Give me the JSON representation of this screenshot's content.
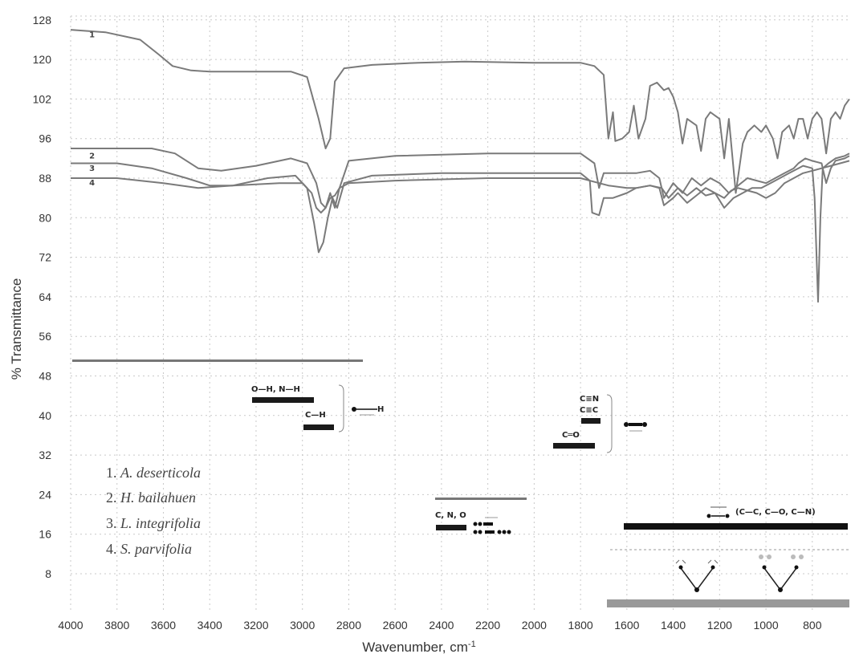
{
  "chart_data": {
    "type": "line",
    "title": "",
    "xlabel": "Wavenumber, cm",
    "xlabel_sup": "-1",
    "ylabel": "% Transmittance",
    "xlim": [
      4000,
      640
    ],
    "ylim": [
      0,
      128
    ],
    "x_reversed": true,
    "grid": true,
    "x_ticks": [
      4000,
      3800,
      3600,
      3400,
      3200,
      3000,
      2800,
      2600,
      2400,
      2200,
      2000,
      1800,
      1600,
      1400,
      1200,
      1000,
      800
    ],
    "y_ticks": [
      8,
      16,
      24,
      32,
      40,
      48,
      56,
      64,
      72,
      80,
      88,
      96,
      102,
      120,
      128
    ],
    "legend": {
      "placement": "bottom-left",
      "entries": [
        {
          "num": "1. ",
          "name": "A. deserticola"
        },
        {
          "num": "2. ",
          "name": "H. bailahuen"
        },
        {
          "num": "3. ",
          "name": "L. integrifolia"
        },
        {
          "num": "4. ",
          "name": "S. parvifolia"
        }
      ]
    },
    "series": [
      {
        "label": "1",
        "label_at": [
          3920,
          124.5
        ],
        "points": [
          [
            4000,
            126
          ],
          [
            3850,
            125.5
          ],
          [
            3700,
            124
          ],
          [
            3620,
            121
          ],
          [
            3560,
            117
          ],
          [
            3480,
            115
          ],
          [
            3400,
            114.5
          ],
          [
            3200,
            114.5
          ],
          [
            3050,
            114.5
          ],
          [
            2980,
            112
          ],
          [
            2930,
            99
          ],
          [
            2900,
            94
          ],
          [
            2880,
            96
          ],
          [
            2860,
            110
          ],
          [
            2820,
            116
          ],
          [
            2700,
            117.5
          ],
          [
            2500,
            118.5
          ],
          [
            2300,
            119
          ],
          [
            2000,
            118.5
          ],
          [
            1800,
            118.5
          ],
          [
            1740,
            117
          ],
          [
            1700,
            113
          ],
          [
            1680,
            96
          ],
          [
            1660,
            100
          ],
          [
            1650,
            95.5
          ],
          [
            1620,
            96
          ],
          [
            1590,
            97
          ],
          [
            1570,
            101
          ],
          [
            1550,
            96
          ],
          [
            1520,
            99
          ],
          [
            1500,
            108
          ],
          [
            1470,
            109.5
          ],
          [
            1440,
            106
          ],
          [
            1420,
            107
          ],
          [
            1400,
            103
          ],
          [
            1380,
            100
          ],
          [
            1360,
            95
          ],
          [
            1340,
            99
          ],
          [
            1300,
            98
          ],
          [
            1280,
            93.5
          ],
          [
            1260,
            99
          ],
          [
            1240,
            100
          ],
          [
            1200,
            99
          ],
          [
            1180,
            92
          ],
          [
            1160,
            99
          ],
          [
            1130,
            85
          ],
          [
            1100,
            95
          ],
          [
            1080,
            97
          ],
          [
            1050,
            98
          ],
          [
            1020,
            97
          ],
          [
            1000,
            98
          ],
          [
            970,
            96
          ],
          [
            950,
            92
          ],
          [
            930,
            97
          ],
          [
            900,
            98
          ],
          [
            880,
            96
          ],
          [
            860,
            99
          ],
          [
            840,
            99
          ],
          [
            820,
            96
          ],
          [
            800,
            99
          ],
          [
            780,
            100
          ],
          [
            760,
            99
          ],
          [
            740,
            93
          ],
          [
            720,
            99
          ],
          [
            700,
            100
          ],
          [
            680,
            99
          ],
          [
            660,
            101
          ],
          [
            640,
            102
          ]
        ]
      },
      {
        "label": "2",
        "label_at": [
          3920,
          92
        ],
        "points": [
          [
            4000,
            94
          ],
          [
            3800,
            94
          ],
          [
            3650,
            94
          ],
          [
            3550,
            93
          ],
          [
            3450,
            90
          ],
          [
            3350,
            89.5
          ],
          [
            3200,
            90.5
          ],
          [
            3050,
            92
          ],
          [
            2980,
            91
          ],
          [
            2940,
            87
          ],
          [
            2920,
            83
          ],
          [
            2900,
            82
          ],
          [
            2880,
            85
          ],
          [
            2860,
            82
          ],
          [
            2840,
            86
          ],
          [
            2800,
            91.5
          ],
          [
            2600,
            92.5
          ],
          [
            2200,
            93
          ],
          [
            1800,
            93
          ],
          [
            1740,
            91
          ],
          [
            1720,
            86
          ],
          [
            1700,
            89
          ],
          [
            1660,
            89
          ],
          [
            1600,
            89
          ],
          [
            1560,
            89
          ],
          [
            1500,
            89.5
          ],
          [
            1460,
            88
          ],
          [
            1440,
            84
          ],
          [
            1400,
            87
          ],
          [
            1360,
            85
          ],
          [
            1320,
            88
          ],
          [
            1280,
            86.5
          ],
          [
            1240,
            88
          ],
          [
            1200,
            87
          ],
          [
            1160,
            85
          ],
          [
            1120,
            86.5
          ],
          [
            1080,
            88
          ],
          [
            1040,
            87.5
          ],
          [
            1000,
            87
          ],
          [
            960,
            88
          ],
          [
            920,
            89
          ],
          [
            880,
            90
          ],
          [
            860,
            91
          ],
          [
            830,
            92
          ],
          [
            800,
            91.5
          ],
          [
            760,
            91
          ],
          [
            740,
            87
          ],
          [
            720,
            90
          ],
          [
            700,
            91.5
          ],
          [
            660,
            92
          ],
          [
            640,
            92.5
          ]
        ]
      },
      {
        "label": "3",
        "label_at": [
          3920,
          89.5
        ],
        "points": [
          [
            4000,
            91
          ],
          [
            3800,
            91
          ],
          [
            3650,
            90
          ],
          [
            3500,
            88
          ],
          [
            3400,
            86.5
          ],
          [
            3300,
            86.5
          ],
          [
            3150,
            88
          ],
          [
            3030,
            88.5
          ],
          [
            2980,
            86
          ],
          [
            2950,
            79
          ],
          [
            2930,
            73
          ],
          [
            2910,
            75
          ],
          [
            2890,
            80
          ],
          [
            2870,
            84
          ],
          [
            2850,
            82
          ],
          [
            2820,
            87
          ],
          [
            2700,
            88.5
          ],
          [
            2400,
            89
          ],
          [
            2000,
            89
          ],
          [
            1800,
            89
          ],
          [
            1760,
            87.5
          ],
          [
            1750,
            81
          ],
          [
            1720,
            80.5
          ],
          [
            1700,
            84
          ],
          [
            1660,
            84
          ],
          [
            1600,
            85
          ],
          [
            1560,
            86
          ],
          [
            1500,
            86.5
          ],
          [
            1460,
            86
          ],
          [
            1440,
            82.5
          ],
          [
            1400,
            84
          ],
          [
            1380,
            85
          ],
          [
            1340,
            83
          ],
          [
            1300,
            84.5
          ],
          [
            1260,
            86
          ],
          [
            1220,
            85
          ],
          [
            1180,
            82
          ],
          [
            1140,
            84
          ],
          [
            1100,
            85
          ],
          [
            1060,
            86
          ],
          [
            1020,
            86
          ],
          [
            980,
            87
          ],
          [
            940,
            88
          ],
          [
            900,
            89
          ],
          [
            860,
            90
          ],
          [
            840,
            90.5
          ],
          [
            800,
            90
          ],
          [
            790,
            84
          ],
          [
            775,
            63
          ],
          [
            765,
            80
          ],
          [
            755,
            90
          ],
          [
            730,
            91
          ],
          [
            700,
            92
          ],
          [
            660,
            92.5
          ],
          [
            640,
            93
          ]
        ]
      },
      {
        "label": "4",
        "label_at": [
          3920,
          86.5
        ],
        "points": [
          [
            4000,
            88
          ],
          [
            3800,
            88
          ],
          [
            3600,
            87
          ],
          [
            3450,
            86
          ],
          [
            3300,
            86.5
          ],
          [
            3100,
            87
          ],
          [
            3000,
            87
          ],
          [
            2960,
            85
          ],
          [
            2940,
            82
          ],
          [
            2920,
            81
          ],
          [
            2900,
            82
          ],
          [
            2880,
            84
          ],
          [
            2860,
            84.5
          ],
          [
            2840,
            86
          ],
          [
            2800,
            87
          ],
          [
            2600,
            87.5
          ],
          [
            2200,
            88
          ],
          [
            1800,
            88
          ],
          [
            1720,
            87
          ],
          [
            1680,
            86.5
          ],
          [
            1600,
            86
          ],
          [
            1560,
            86
          ],
          [
            1500,
            86.5
          ],
          [
            1450,
            86
          ],
          [
            1420,
            84
          ],
          [
            1380,
            86
          ],
          [
            1340,
            84.5
          ],
          [
            1300,
            86
          ],
          [
            1260,
            84.5
          ],
          [
            1220,
            85
          ],
          [
            1180,
            84
          ],
          [
            1150,
            85.5
          ],
          [
            1120,
            86
          ],
          [
            1080,
            85.5
          ],
          [
            1040,
            85
          ],
          [
            1000,
            84
          ],
          [
            960,
            85
          ],
          [
            920,
            87
          ],
          [
            880,
            88
          ],
          [
            840,
            89
          ],
          [
            800,
            89.5
          ],
          [
            760,
            90
          ],
          [
            720,
            90.5
          ],
          [
            680,
            91
          ],
          [
            640,
            91.5
          ]
        ]
      }
    ],
    "band_annotations": {
      "labels": {
        "oh_nh": "O—H, N—H",
        "ch": "C—H",
        "cn_triple": "C≡N",
        "cc_triple": "C≡C",
        "co_double": "C═O",
        "cno": "C, N, O",
        "single_bonds": "(C—C, C—O, C—N)"
      }
    }
  }
}
